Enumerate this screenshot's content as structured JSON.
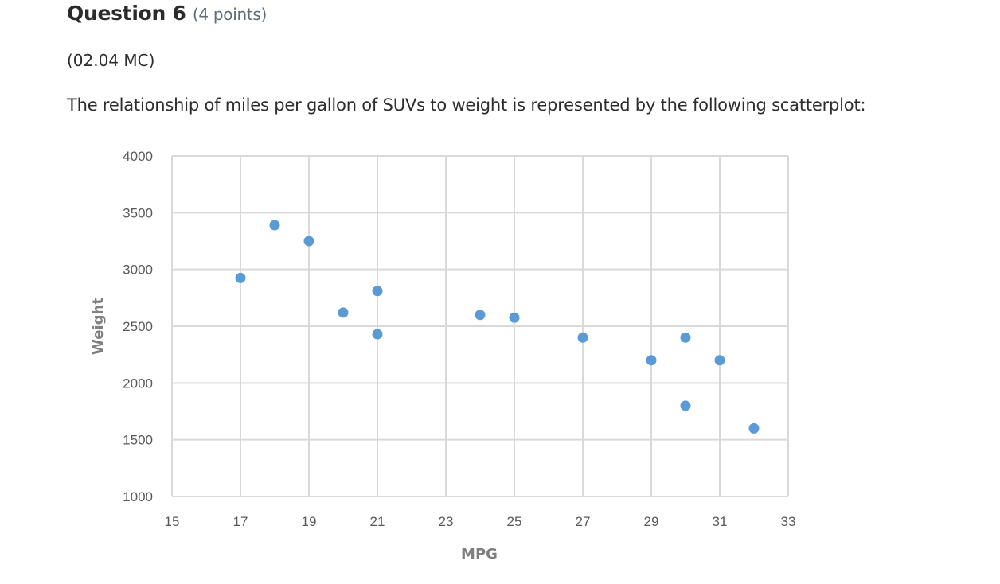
{
  "question": {
    "title": "Question 6",
    "points": "(4 points)",
    "code": "(02.04 MC)",
    "prompt": "The relationship of miles per gallon of SUVs to weight is represented by the following scatterplot:"
  },
  "colors": {
    "marker": "#5B9BD5",
    "grid": "#d9d9d9",
    "tick_text": "#595959"
  },
  "chart_data": {
    "type": "scatter",
    "title": "",
    "xlabel": "MPG",
    "ylabel": "Weight",
    "xlim": [
      15,
      33
    ],
    "ylim": [
      1000,
      4000
    ],
    "x_ticks": [
      15,
      17,
      19,
      21,
      23,
      25,
      27,
      29,
      31,
      33
    ],
    "y_ticks": [
      1000,
      1500,
      2000,
      2500,
      3000,
      3500,
      4000
    ],
    "grid": true,
    "legend": null,
    "series": [
      {
        "name": "Weight",
        "points": [
          {
            "x": 17,
            "y": 2925
          },
          {
            "x": 18,
            "y": 3390
          },
          {
            "x": 19,
            "y": 3250
          },
          {
            "x": 20,
            "y": 2620
          },
          {
            "x": 21,
            "y": 2810
          },
          {
            "x": 21,
            "y": 2430
          },
          {
            "x": 24,
            "y": 2600
          },
          {
            "x": 25,
            "y": 2575
          },
          {
            "x": 27,
            "y": 2400
          },
          {
            "x": 29,
            "y": 2200
          },
          {
            "x": 30,
            "y": 2400
          },
          {
            "x": 30,
            "y": 1800
          },
          {
            "x": 31,
            "y": 2200
          },
          {
            "x": 32,
            "y": 1600
          }
        ]
      }
    ]
  }
}
